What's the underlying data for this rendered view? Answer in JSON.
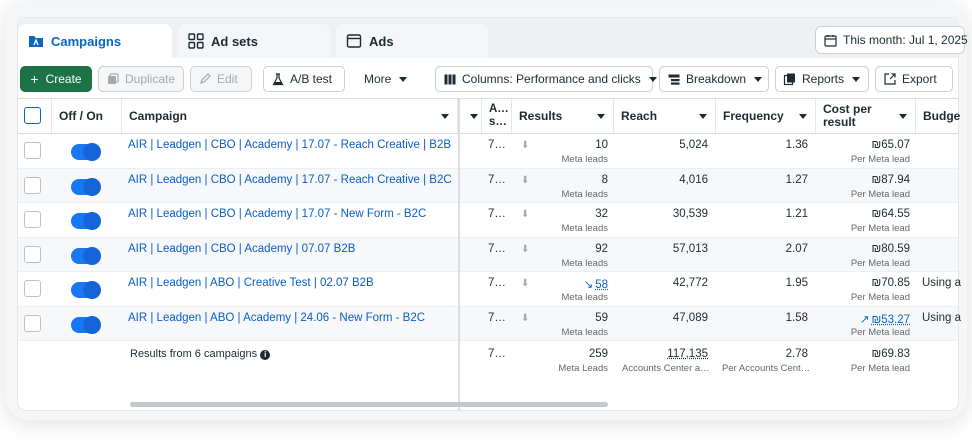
{
  "tabs": [
    {
      "label": "Campaigns",
      "active": true
    },
    {
      "label": "Ad sets",
      "active": false
    },
    {
      "label": "Ads",
      "active": false
    }
  ],
  "date_range": "This month: Jul 1, 2025",
  "toolbar": {
    "create": "Create",
    "duplicate": "Duplicate",
    "edit": "Edit",
    "ab_test": "A/B test",
    "more": "More",
    "columns": "Columns: Performance and clicks",
    "breakdown": "Breakdown",
    "reports": "Reports",
    "export": "Export"
  },
  "columns": {
    "off_on": "Off / On",
    "campaign": "Campaign",
    "attribution": "A… s…",
    "results": "Results",
    "reach": "Reach",
    "frequency": "Frequency",
    "cost_per_result_1": "Cost per",
    "cost_per_result_2": "result",
    "budget": "Budge"
  },
  "rows": [
    {
      "name": "AIR | Leadgen | CBO | Academy | 17.07 - Reach Creative | B2B",
      "attr": "7…",
      "results": "10",
      "results_sub": "Meta leads",
      "results_trend": "",
      "reach": "5,024",
      "frequency": "1.36",
      "cost": "₪65.07",
      "cost_sub": "Per Meta lead",
      "cost_trend": "",
      "budget": ""
    },
    {
      "name": "AIR | Leadgen | CBO | Academy | 17.07 - Reach Creative | B2C",
      "attr": "7…",
      "results": "8",
      "results_sub": "Meta leads",
      "results_trend": "",
      "reach": "4,016",
      "frequency": "1.27",
      "cost": "₪87.94",
      "cost_sub": "Per Meta lead",
      "cost_trend": "",
      "budget": ""
    },
    {
      "name": "AIR | Leadgen | CBO | Academy | 17.07 - New Form - B2C",
      "attr": "7…",
      "results": "32",
      "results_sub": "Meta leads",
      "results_trend": "",
      "reach": "30,539",
      "frequency": "1.21",
      "cost": "₪64.55",
      "cost_sub": "Per Meta lead",
      "cost_trend": "",
      "budget": ""
    },
    {
      "name": "AIR | Leadgen | CBO | Academy | 07.07 B2B",
      "attr": "7…",
      "results": "92",
      "results_sub": "Meta leads",
      "results_trend": "",
      "reach": "57,013",
      "frequency": "2.07",
      "cost": "₪80.59",
      "cost_sub": "Per Meta lead",
      "cost_trend": "",
      "budget": ""
    },
    {
      "name": "AIR | Leadgen | ABO | Creative Test | 02.07 B2B",
      "attr": "7…",
      "results": "58",
      "results_sub": "Meta leads",
      "results_trend": "down",
      "reach": "42,772",
      "frequency": "1.95",
      "cost": "₪70.85",
      "cost_sub": "Per Meta lead",
      "cost_trend": "",
      "budget": "Using a"
    },
    {
      "name": "AIR | Leadgen | ABO | Academy | 24.06 - New Form - B2C",
      "attr": "7…",
      "results": "59",
      "results_sub": "Meta leads",
      "results_trend": "",
      "reach": "47,089",
      "frequency": "1.58",
      "cost": "₪53.27",
      "cost_sub": "Per Meta lead",
      "cost_trend": "up",
      "budget": "Using a"
    }
  ],
  "summary": {
    "label": "Results from 6 campaigns",
    "attr": "7…",
    "results": "259",
    "results_sub": "Meta Leads",
    "reach": "117,135",
    "reach_sub": "Accounts Center a…",
    "frequency": "2.78",
    "frequency_sub": "Per Accounts Cent…",
    "cost": "₪69.83",
    "cost_sub": "Per Meta lead"
  }
}
